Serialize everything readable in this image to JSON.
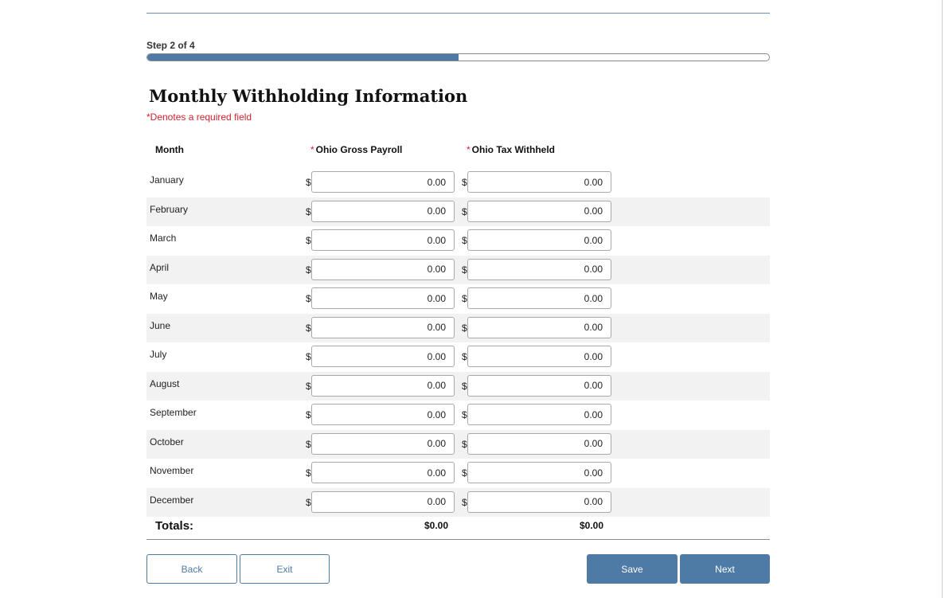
{
  "progress": {
    "step_label": "Step 2 of 4",
    "fraction": 0.5
  },
  "form": {
    "title": "Monthly Withholding Information",
    "required_note": "*Denotes a required field",
    "headers": {
      "month": "Month",
      "required_mark": "*",
      "gross_payroll": "Ohio Gross Payroll",
      "tax_withheld": "Ohio Tax Withheld"
    },
    "currency_symbol": "$",
    "rows": [
      {
        "month": "January",
        "gross_payroll": "0.00",
        "tax_withheld": "0.00"
      },
      {
        "month": "February",
        "gross_payroll": "0.00",
        "tax_withheld": "0.00"
      },
      {
        "month": "March",
        "gross_payroll": "0.00",
        "tax_withheld": "0.00"
      },
      {
        "month": "April",
        "gross_payroll": "0.00",
        "tax_withheld": "0.00"
      },
      {
        "month": "May",
        "gross_payroll": "0.00",
        "tax_withheld": "0.00"
      },
      {
        "month": "June",
        "gross_payroll": "0.00",
        "tax_withheld": "0.00"
      },
      {
        "month": "July",
        "gross_payroll": "0.00",
        "tax_withheld": "0.00"
      },
      {
        "month": "August",
        "gross_payroll": "0.00",
        "tax_withheld": "0.00"
      },
      {
        "month": "September",
        "gross_payroll": "0.00",
        "tax_withheld": "0.00"
      },
      {
        "month": "October",
        "gross_payroll": "0.00",
        "tax_withheld": "0.00"
      },
      {
        "month": "November",
        "gross_payroll": "0.00",
        "tax_withheld": "0.00"
      },
      {
        "month": "December",
        "gross_payroll": "0.00",
        "tax_withheld": "0.00"
      }
    ],
    "totals": {
      "label": "Totals:",
      "gross_payroll": "$0.00",
      "tax_withheld": "$0.00"
    }
  },
  "buttons": {
    "back": "Back",
    "exit": "Exit",
    "save": "Save",
    "next": "Next"
  },
  "colors": {
    "accent": "#4e7aa6",
    "required": "#d4202b",
    "row_shade": "#f2f2f2"
  }
}
